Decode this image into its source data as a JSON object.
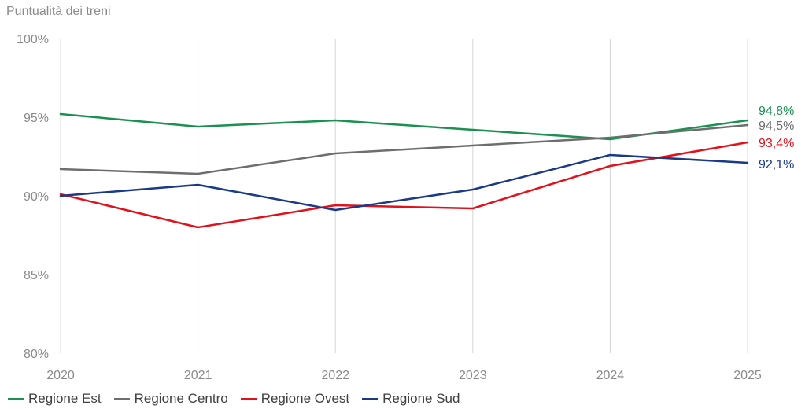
{
  "chart_data": {
    "type": "line",
    "title": "Puntualità dei treni",
    "x": [
      "2020",
      "2021",
      "2022",
      "2023",
      "2024",
      "2025"
    ],
    "ylim": [
      80,
      100
    ],
    "yticks": [
      "100%",
      "95%",
      "90%",
      "85%",
      "80%"
    ],
    "grid": "vertical",
    "legend_position": "bottom",
    "series": [
      {
        "name": "Regione Est",
        "color": "#1a9150",
        "values": [
          95.2,
          94.4,
          94.8,
          94.2,
          93.6,
          94.8
        ],
        "end_label": "94,8%"
      },
      {
        "name": "Regione Centro",
        "color": "#6e6e6e",
        "values": [
          91.7,
          91.4,
          92.7,
          93.2,
          93.7,
          94.5
        ],
        "end_label": "94,5%"
      },
      {
        "name": "Regione Ovest",
        "color": "#e2111b",
        "values": [
          90.1,
          88.0,
          89.4,
          89.2,
          91.9,
          93.4
        ],
        "end_label": "93,4%"
      },
      {
        "name": "Regione Sud",
        "color": "#1a3a87",
        "values": [
          90.0,
          90.7,
          89.1,
          90.4,
          92.6,
          92.1
        ],
        "end_label": "92,1%"
      }
    ]
  }
}
